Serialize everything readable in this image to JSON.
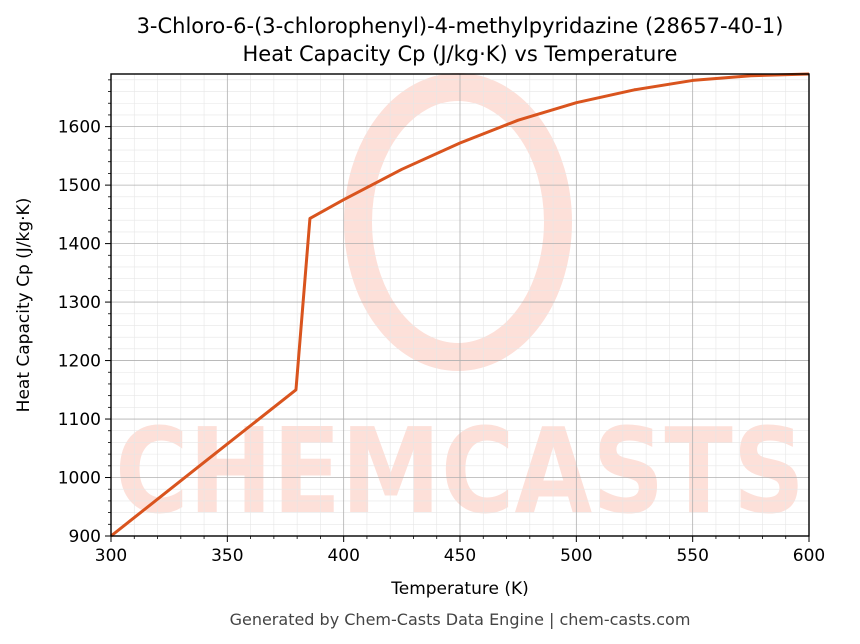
{
  "chart_data": {
    "type": "line",
    "title": "3-Chloro-6-(3-chlorophenyl)-4-methylpyridazine (28657-40-1)",
    "subtitle": "Heat Capacity Cp (J/kg·K) vs Temperature",
    "xlabel": "Temperature (K)",
    "ylabel": "Heat Capacity Cp (J/kg·K)",
    "xlim": [
      300,
      600
    ],
    "ylim": [
      900,
      1690
    ],
    "x_ticks": [
      300,
      350,
      400,
      450,
      500,
      550,
      600
    ],
    "y_ticks": [
      900,
      1000,
      1100,
      1200,
      1300,
      1400,
      1500,
      1600
    ],
    "grid": true,
    "line_color": "#d9541e",
    "series": [
      {
        "name": "",
        "x": [
          300,
          340,
          379.5,
          385.5,
          400,
          425,
          450,
          475,
          500,
          525,
          550,
          575,
          600
        ],
        "y": [
          900,
          1026,
          1150,
          1443,
          1475,
          1527,
          1572,
          1611,
          1641,
          1663,
          1679,
          1687,
          1690
        ]
      }
    ]
  },
  "watermark": {
    "text": "CHEMCASTS",
    "color": "#fde0d9"
  },
  "footer": "Generated by Chem-Casts Data Engine | chem-casts.com"
}
